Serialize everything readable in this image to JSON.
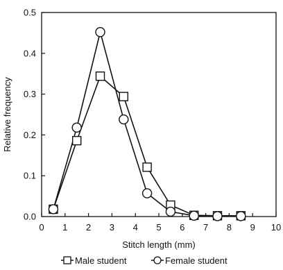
{
  "chart_data": {
    "type": "line",
    "xlabel": "Stitch length (mm)",
    "ylabel": "Relative frequency",
    "xlim": [
      0,
      10
    ],
    "ylim": [
      0,
      0.5
    ],
    "x_ticks": [
      "0",
      "1",
      "2",
      "3",
      "4",
      "5",
      "6",
      "7",
      "8",
      "9",
      "10"
    ],
    "y_ticks": [
      "0.0",
      "0.1",
      "0.2",
      "0.3",
      "0.4",
      "0.5"
    ],
    "grid": false,
    "legend_position": "bottom",
    "series": [
      {
        "name": "Male student",
        "marker": "square",
        "x": [
          0.5,
          1.5,
          2.5,
          3.5,
          4.5,
          5.5,
          6.5,
          7.5,
          8.5
        ],
        "values": [
          0.018,
          0.186,
          0.344,
          0.294,
          0.121,
          0.028,
          0.003,
          0.002,
          0.002
        ]
      },
      {
        "name": "Female student",
        "marker": "circle",
        "x": [
          0.5,
          1.5,
          2.5,
          3.5,
          4.5,
          5.5,
          6.5,
          7.5,
          8.5
        ],
        "values": [
          0.018,
          0.218,
          0.452,
          0.238,
          0.057,
          0.012,
          0.002,
          0.001,
          0.001
        ]
      }
    ]
  }
}
